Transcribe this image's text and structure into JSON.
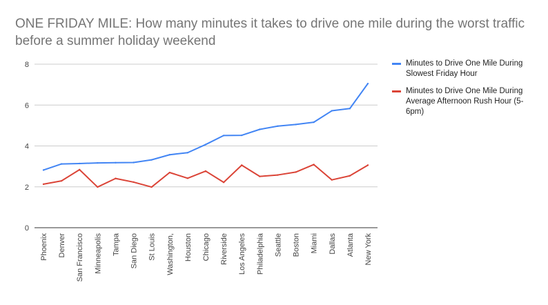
{
  "chart_data": {
    "type": "line",
    "title": "ONE FRIDAY MILE: How many minutes it takes to drive one mile during the worst traffic before a summer holiday weekend",
    "xlabel": "",
    "ylabel": "",
    "ylim": [
      0,
      8
    ],
    "yticks": [
      "0",
      "2",
      "4",
      "6",
      "8"
    ],
    "grid": true,
    "legend_position": "right",
    "categories": [
      "Phoenix",
      "Denver",
      "San Francisco",
      "Minneapolis",
      "Tampa",
      "San Diego",
      "St Louis",
      "Washington,",
      "Houston",
      "Chicago",
      "Riverside",
      "Los Angeles",
      "Philadelphia",
      "Seattle",
      "Boston",
      "Miami",
      "Dallas",
      "Atlanta",
      "New York"
    ],
    "series": [
      {
        "name": "Minutes to Drive One Mile During Slowest Friday Hour",
        "color": "#4285f4",
        "values": [
          2.82,
          3.12,
          3.14,
          3.17,
          3.18,
          3.19,
          3.32,
          3.57,
          3.67,
          4.07,
          4.51,
          4.52,
          4.81,
          4.97,
          5.05,
          5.16,
          5.72,
          5.83,
          7.05
        ]
      },
      {
        "name": "Minutes to Drive One Mile During Average Afternoon Rush Hour (5-6pm)",
        "color": "#db4437",
        "values": [
          2.13,
          2.29,
          2.84,
          1.99,
          2.41,
          2.23,
          1.99,
          2.7,
          2.42,
          2.77,
          2.22,
          3.06,
          2.51,
          2.58,
          2.72,
          3.09,
          2.34,
          2.54,
          3.06
        ]
      }
    ]
  }
}
